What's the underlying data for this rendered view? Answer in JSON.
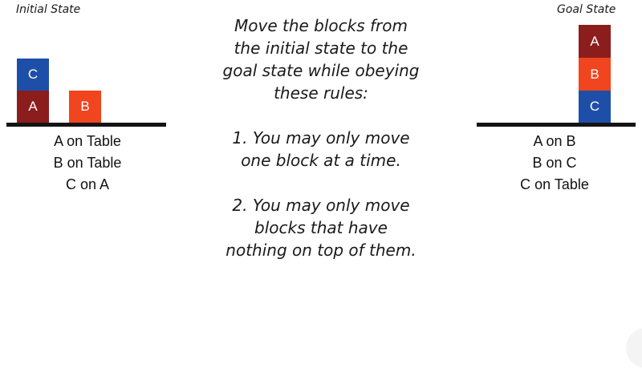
{
  "initial": {
    "title": "Initial State",
    "blocks": {
      "C": "C",
      "A": "A",
      "B": "B"
    },
    "facts": [
      "A on Table",
      "B on Table",
      "C on A"
    ]
  },
  "goal": {
    "title": "Goal State",
    "blocks": {
      "A": "A",
      "B": "B",
      "C": "C"
    },
    "facts": [
      "A on B",
      "B on C",
      "C on Table"
    ]
  },
  "instructions": {
    "intro": [
      "Move the blocks from",
      "the initial state to the",
      "goal state while obeying",
      "these rules:"
    ],
    "rule1": [
      "1. You may only move",
      "one block at a time."
    ],
    "rule2": [
      "2. You may only move",
      "blocks that have",
      "nothing on top of them."
    ]
  },
  "colors": {
    "block_blue": "#1e4fa8",
    "block_dark_red": "#8c1d1d",
    "block_orange": "#f0451e",
    "table": "#141414"
  }
}
